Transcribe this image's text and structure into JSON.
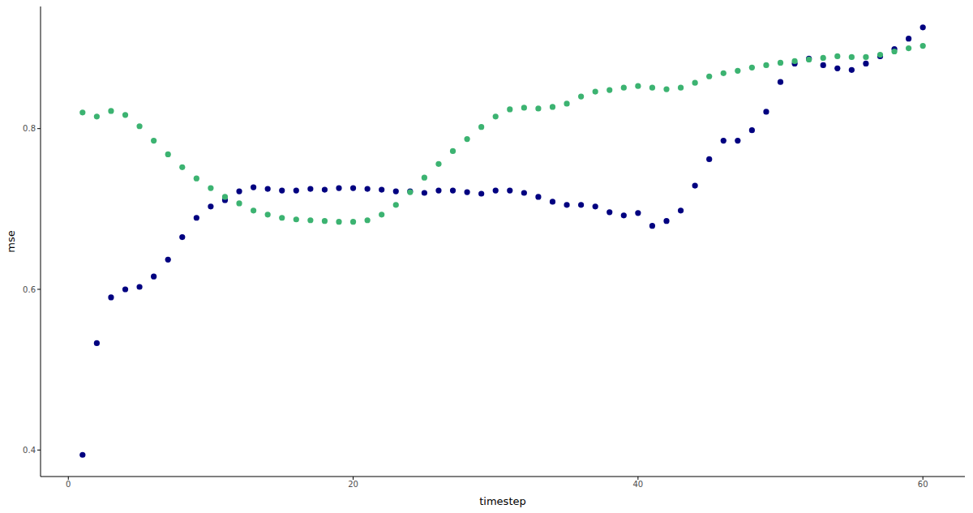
{
  "chart_data": {
    "type": "scatter",
    "x_label": "timestep",
    "y_label": "mse",
    "x": [
      1,
      2,
      3,
      4,
      5,
      6,
      7,
      8,
      9,
      10,
      11,
      12,
      13,
      14,
      15,
      16,
      17,
      18,
      19,
      20,
      21,
      22,
      23,
      24,
      25,
      26,
      27,
      28,
      29,
      30,
      31,
      32,
      33,
      34,
      35,
      36,
      37,
      38,
      39,
      40,
      41,
      42,
      43,
      44,
      45,
      46,
      47,
      48,
      49,
      50,
      51,
      52,
      53,
      54,
      55,
      56,
      57,
      58,
      59,
      60
    ],
    "series": [
      {
        "color": "#000080",
        "values": [
          0.394,
          0.533,
          0.59,
          0.6,
          0.603,
          0.616,
          0.637,
          0.665,
          0.689,
          0.703,
          0.711,
          0.722,
          0.727,
          0.725,
          0.723,
          0.723,
          0.725,
          0.724,
          0.726,
          0.726,
          0.725,
          0.724,
          0.722,
          0.722,
          0.72,
          0.723,
          0.723,
          0.721,
          0.719,
          0.723,
          0.723,
          0.72,
          0.715,
          0.709,
          0.705,
          0.705,
          0.703,
          0.696,
          0.692,
          0.695,
          0.679,
          0.685,
          0.698,
          0.729,
          0.762,
          0.785,
          0.785,
          0.798,
          0.821,
          0.858,
          0.881,
          0.887,
          0.879,
          0.875,
          0.873,
          0.881,
          0.89,
          0.899,
          0.912,
          0.926
        ]
      },
      {
        "color": "#3cb371",
        "values": [
          0.82,
          0.815,
          0.822,
          0.817,
          0.803,
          0.785,
          0.768,
          0.752,
          0.738,
          0.726,
          0.715,
          0.707,
          0.698,
          0.693,
          0.689,
          0.687,
          0.686,
          0.685,
          0.684,
          0.684,
          0.686,
          0.693,
          0.705,
          0.721,
          0.739,
          0.756,
          0.772,
          0.787,
          0.802,
          0.815,
          0.824,
          0.826,
          0.825,
          0.827,
          0.831,
          0.84,
          0.846,
          0.848,
          0.851,
          0.853,
          0.851,
          0.849,
          0.851,
          0.857,
          0.865,
          0.869,
          0.872,
          0.876,
          0.879,
          0.882,
          0.884,
          0.886,
          0.888,
          0.89,
          0.889,
          0.889,
          0.892,
          0.896,
          0.9,
          0.903
        ]
      }
    ],
    "xlim": [
      -1.95,
      62.95
    ],
    "xticks": [
      0,
      20,
      40,
      60
    ],
    "ylim": [
      0.367,
      0.952
    ],
    "yticks": [
      0.4,
      0.6,
      0.8
    ],
    "grid": false,
    "marker": "circle"
  }
}
